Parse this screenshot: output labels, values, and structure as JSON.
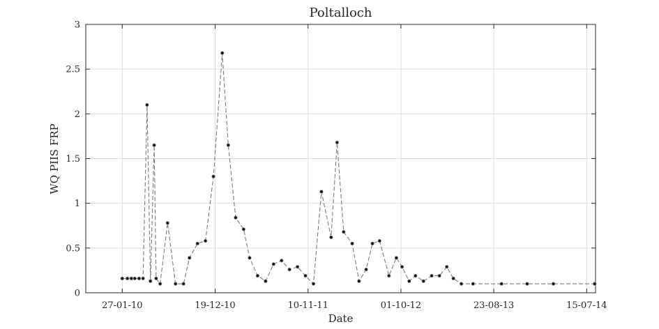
{
  "chart_data": {
    "type": "line",
    "title": "Poltalloch",
    "xlabel": "Date",
    "ylabel": "WQ PIIS FRP",
    "ylim": [
      0,
      3
    ],
    "yticks": [
      "0",
      "0.5",
      "1",
      "1.5",
      "2",
      "2.5",
      "3"
    ],
    "xlim": [
      "2009-09-21",
      "2014-08-15"
    ],
    "xticks": [
      {
        "date": "2010-01-27",
        "label": "27-01-10"
      },
      {
        "date": "2010-12-19",
        "label": "19-12-10"
      },
      {
        "date": "2011-11-10",
        "label": "10-11-11"
      },
      {
        "date": "2012-10-01",
        "label": "01-10-12"
      },
      {
        "date": "2013-08-23",
        "label": "23-08-13"
      },
      {
        "date": "2014-07-15",
        "label": "15-07-14"
      }
    ],
    "grid": true,
    "series": [
      {
        "line_color": "#7a7a7a",
        "marker_color": "#111111",
        "x": [
          "2010-01-27",
          "2010-02-14",
          "2010-02-28",
          "2010-03-12",
          "2010-03-27",
          "2010-04-10",
          "2010-04-24",
          "2010-05-06",
          "2010-05-19",
          "2010-05-26",
          "2010-06-09",
          "2010-07-05",
          "2010-08-02",
          "2010-08-30",
          "2010-09-20",
          "2010-10-18",
          "2010-11-15",
          "2010-12-13",
          "2011-01-13",
          "2011-02-03",
          "2011-03-01",
          "2011-03-29",
          "2011-04-19",
          "2011-05-17",
          "2011-06-14",
          "2011-07-12",
          "2011-08-09",
          "2011-09-06",
          "2011-10-04",
          "2011-11-01",
          "2011-11-29",
          "2011-12-27",
          "2012-01-30",
          "2012-02-20",
          "2012-03-14",
          "2012-04-13",
          "2012-05-07",
          "2012-06-01",
          "2012-06-23",
          "2012-07-18",
          "2012-08-20",
          "2012-09-15",
          "2012-10-05",
          "2012-10-30",
          "2012-11-21",
          "2012-12-19",
          "2013-01-17",
          "2013-02-13",
          "2013-03-11",
          "2013-04-03",
          "2013-05-01",
          "2013-06-11",
          "2013-09-19",
          "2013-12-18",
          "2014-03-20",
          "2014-08-12"
        ],
        "values": [
          0.16,
          0.16,
          0.16,
          0.16,
          0.16,
          0.16,
          2.1,
          0.13,
          1.65,
          0.16,
          0.1,
          0.78,
          0.1,
          0.1,
          0.39,
          0.55,
          0.58,
          1.3,
          2.68,
          1.65,
          0.84,
          0.71,
          0.39,
          0.19,
          0.13,
          0.32,
          0.36,
          0.26,
          0.29,
          0.19,
          0.1,
          1.13,
          0.62,
          1.68,
          0.68,
          0.55,
          0.13,
          0.26,
          0.55,
          0.58,
          0.19,
          0.39,
          0.29,
          0.13,
          0.19,
          0.13,
          0.19,
          0.19,
          0.29,
          0.16,
          0.1,
          0.1,
          0.1,
          0.1,
          0.1,
          0.1
        ]
      }
    ]
  }
}
